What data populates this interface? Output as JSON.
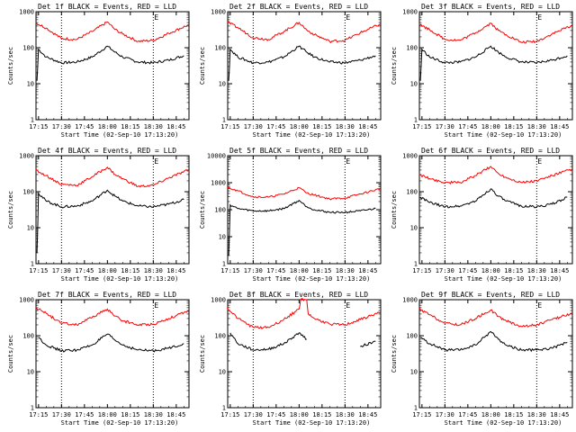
{
  "chart_data": [
    {
      "type": "line",
      "title": "Det 1f BLACK = Events, RED = LLD",
      "xlabel": "Start Time (02-Sep-10 17:13:20)",
      "ylabel": "Counts/sec",
      "yscale": "log",
      "ylim": [
        1,
        1000
      ],
      "xlim": [
        "17:13:20",
        "18:53:20"
      ],
      "x_ticks": [
        "17:15",
        "17:30",
        "17:45",
        "18:00",
        "18:15",
        "18:30",
        "18:45"
      ],
      "y_ticks": [
        "1",
        "10",
        "100",
        "1000"
      ],
      "marker": "E",
      "vlines": [
        "17:30",
        "18:30"
      ],
      "series": [
        {
          "color": "#000000",
          "x": [
            "17:14",
            "17:15",
            "17:20",
            "17:30",
            "17:40",
            "17:50",
            "18:00",
            "18:05",
            "18:10",
            "18:20",
            "18:30",
            "18:40",
            "18:50"
          ],
          "values": [
            12,
            90,
            55,
            38,
            40,
            55,
            110,
            75,
            55,
            40,
            38,
            45,
            60
          ]
        },
        {
          "color": "#ff0000",
          "x": [
            "17:13",
            "17:20",
            "17:30",
            "17:40",
            "17:50",
            "18:00",
            "18:05",
            "18:10",
            "18:20",
            "18:30",
            "18:40",
            "18:53"
          ],
          "values": [
            500,
            350,
            180,
            170,
            280,
            520,
            320,
            240,
            150,
            160,
            250,
            430
          ]
        }
      ]
    },
    {
      "type": "line",
      "title": "Det 2f BLACK = Events, RED = LLD",
      "xlabel": "Start Time (02-Sep-10 17:13:20)",
      "ylabel": "Counts/sec",
      "yscale": "log",
      "ylim": [
        1,
        1000
      ],
      "xlim": [
        "17:13:20",
        "18:53:20"
      ],
      "x_ticks": [
        "17:15",
        "17:30",
        "17:45",
        "18:00",
        "18:15",
        "18:30",
        "18:45"
      ],
      "y_ticks": [
        "1",
        "10",
        "100",
        "1000"
      ],
      "marker": "E",
      "vlines": [
        "17:30",
        "18:30"
      ],
      "series": [
        {
          "color": "#000000",
          "x": [
            "17:14",
            "17:15",
            "17:20",
            "17:30",
            "17:40",
            "17:50",
            "18:00",
            "18:05",
            "18:10",
            "18:20",
            "18:30",
            "18:40",
            "18:50"
          ],
          "values": [
            12,
            90,
            55,
            38,
            40,
            55,
            110,
            75,
            55,
            40,
            38,
            45,
            60
          ]
        },
        {
          "color": "#ff0000",
          "x": [
            "17:13",
            "17:20",
            "17:30",
            "17:40",
            "17:50",
            "18:00",
            "18:05",
            "18:10",
            "18:20",
            "18:30",
            "18:40",
            "18:53"
          ],
          "values": [
            520,
            360,
            190,
            170,
            280,
            500,
            310,
            230,
            150,
            160,
            260,
            450
          ]
        }
      ]
    },
    {
      "type": "line",
      "title": "Det 3f BLACK = Events, RED = LLD",
      "xlabel": "Start Time (02-Sep-10 17:13:20)",
      "ylabel": "Counts/sec",
      "yscale": "log",
      "ylim": [
        1,
        1000
      ],
      "xlim": [
        "17:13:20",
        "18:53:20"
      ],
      "x_ticks": [
        "17:15",
        "17:30",
        "17:45",
        "18:00",
        "18:15",
        "18:30",
        "18:45"
      ],
      "y_ticks": [
        "1",
        "10",
        "100",
        "1000"
      ],
      "marker": "E",
      "vlines": [
        "17:30",
        "18:30"
      ],
      "series": [
        {
          "color": "#000000",
          "x": [
            "17:14",
            "17:15",
            "17:20",
            "17:30",
            "17:40",
            "17:50",
            "18:00",
            "18:05",
            "18:10",
            "18:20",
            "18:30",
            "18:40",
            "18:50"
          ],
          "values": [
            12,
            90,
            55,
            38,
            40,
            55,
            110,
            75,
            55,
            40,
            38,
            45,
            60
          ]
        },
        {
          "color": "#ff0000",
          "x": [
            "17:13",
            "17:20",
            "17:30",
            "17:40",
            "17:50",
            "18:00",
            "18:05",
            "18:10",
            "18:20",
            "18:30",
            "18:40",
            "18:53"
          ],
          "values": [
            450,
            320,
            170,
            160,
            260,
            480,
            300,
            230,
            140,
            150,
            240,
            420
          ]
        }
      ]
    },
    {
      "type": "line",
      "title": "Det 4f BLACK = Events, RED = LLD",
      "xlabel": "Start Time (02-Sep-10 17:13:20)",
      "ylabel": "Counts/sec",
      "yscale": "log",
      "ylim": [
        1,
        1000
      ],
      "xlim": [
        "17:13:20",
        "18:53:20"
      ],
      "x_ticks": [
        "17:15",
        "17:30",
        "17:45",
        "18:00",
        "18:15",
        "18:30",
        "18:45"
      ],
      "y_ticks": [
        "1",
        "10",
        "100",
        "1000"
      ],
      "marker": "E",
      "vlines": [
        "17:30",
        "18:30"
      ],
      "series": [
        {
          "color": "#000000",
          "x": [
            "17:14",
            "17:15",
            "17:20",
            "17:30",
            "17:40",
            "17:50",
            "18:00",
            "18:05",
            "18:10",
            "18:20",
            "18:30",
            "18:40",
            "18:50"
          ],
          "values": [
            2,
            90,
            55,
            38,
            40,
            55,
            110,
            75,
            55,
            40,
            38,
            45,
            60
          ]
        },
        {
          "color": "#ff0000",
          "x": [
            "17:13",
            "17:20",
            "17:30",
            "17:40",
            "17:50",
            "18:00",
            "18:05",
            "18:10",
            "18:20",
            "18:30",
            "18:40",
            "18:53"
          ],
          "values": [
            400,
            280,
            160,
            150,
            260,
            480,
            300,
            230,
            140,
            150,
            240,
            400
          ]
        }
      ]
    },
    {
      "type": "line",
      "title": "Det 5f BLACK = Events, RED = LLD",
      "xlabel": "Start Time (02-Sep-10 17:13:20)",
      "ylabel": "Counts/sec",
      "yscale": "log",
      "ylim": [
        1,
        10000
      ],
      "xlim": [
        "17:13:20",
        "18:53:20"
      ],
      "x_ticks": [
        "17:15",
        "17:30",
        "17:45",
        "18:00",
        "18:15",
        "18:30",
        "18:45"
      ],
      "y_ticks": [
        "1",
        "10",
        "100",
        "1000",
        "10000"
      ],
      "marker": "E",
      "vlines": [
        "17:30",
        "18:30"
      ],
      "series": [
        {
          "color": "#000000",
          "x": [
            "17:14",
            "17:15",
            "17:20",
            "17:30",
            "17:40",
            "17:50",
            "18:00",
            "18:05",
            "18:10",
            "18:20",
            "18:30",
            "18:40",
            "18:50"
          ],
          "values": [
            2,
            150,
            110,
            90,
            90,
            110,
            220,
            130,
            100,
            80,
            80,
            90,
            110
          ]
        },
        {
          "color": "#ff0000",
          "x": [
            "17:13",
            "17:20",
            "17:30",
            "17:40",
            "17:50",
            "18:00",
            "18:05",
            "18:10",
            "18:20",
            "18:30",
            "18:40",
            "18:53"
          ],
          "values": [
            700,
            500,
            300,
            290,
            380,
            650,
            420,
            350,
            250,
            270,
            380,
            600
          ]
        }
      ]
    },
    {
      "type": "line",
      "title": "Det 6f BLACK = Events, RED = LLD",
      "xlabel": "Start Time (02-Sep-10 17:13:20)",
      "ylabel": "Counts/sec",
      "yscale": "log",
      "ylim": [
        1,
        1000
      ],
      "xlim": [
        "17:13:20",
        "18:53:20"
      ],
      "x_ticks": [
        "17:15",
        "17:30",
        "17:45",
        "18:00",
        "18:15",
        "18:30",
        "18:45"
      ],
      "y_ticks": [
        "1",
        "10",
        "100",
        "1000"
      ],
      "marker": "E",
      "vlines": [
        "17:30",
        "18:30"
      ],
      "series": [
        {
          "color": "#000000",
          "x": [
            "17:14",
            "17:20",
            "17:30",
            "17:40",
            "17:50",
            "18:00",
            "18:05",
            "18:10",
            "18:20",
            "18:30",
            "18:40",
            "18:50"
          ],
          "values": [
            70,
            50,
            38,
            40,
            55,
            120,
            75,
            55,
            40,
            38,
            45,
            70
          ]
        },
        {
          "color": "#ff0000",
          "x": [
            "17:13",
            "17:20",
            "17:30",
            "17:40",
            "17:50",
            "18:00",
            "18:05",
            "18:10",
            "18:20",
            "18:30",
            "18:40",
            "18:53"
          ],
          "values": [
            300,
            230,
            180,
            180,
            280,
            500,
            320,
            250,
            180,
            200,
            280,
            420
          ]
        }
      ]
    },
    {
      "type": "line",
      "title": "Det 7f BLACK = Events, RED = LLD",
      "xlabel": "Start Time (02-Sep-10 17:13:20)",
      "ylabel": "Counts/sec",
      "yscale": "log",
      "ylim": [
        1,
        1000
      ],
      "xlim": [
        "17:13:20",
        "18:53:20"
      ],
      "x_ticks": [
        "17:15",
        "17:30",
        "17:45",
        "18:00",
        "18:15",
        "18:30",
        "18:45"
      ],
      "y_ticks": [
        "1",
        "10",
        "100",
        "1000"
      ],
      "marker": "E",
      "vlines": [
        "17:30",
        "18:30"
      ],
      "series": [
        {
          "color": "#000000",
          "x": [
            "17:15",
            "17:20",
            "17:30",
            "17:40",
            "17:50",
            "18:00",
            "18:05",
            "18:10",
            "18:20",
            "18:30",
            "18:40",
            "18:50"
          ],
          "values": [
            90,
            55,
            38,
            40,
            55,
            110,
            75,
            55,
            40,
            38,
            45,
            60
          ]
        },
        {
          "color": "#ff0000",
          "x": [
            "17:13",
            "17:20",
            "17:30",
            "17:40",
            "17:50",
            "18:00",
            "18:05",
            "18:10",
            "18:20",
            "18:30",
            "18:40",
            "18:53"
          ],
          "values": [
            600,
            420,
            220,
            200,
            320,
            550,
            350,
            260,
            200,
            210,
            300,
            480
          ]
        }
      ]
    },
    {
      "type": "line",
      "title": "Det 8f BLACK = Events, RED = LLD",
      "xlabel": "Start Time (02-Sep-10 17:13:20)",
      "ylabel": "Counts/sec",
      "yscale": "log",
      "ylim": [
        1,
        1000
      ],
      "xlim": [
        "17:13:20",
        "18:53:20"
      ],
      "x_ticks": [
        "17:15",
        "17:30",
        "17:45",
        "18:00",
        "18:15",
        "18:30",
        "18:45"
      ],
      "y_ticks": [
        "1",
        "10",
        "100",
        "1000"
      ],
      "marker": "E",
      "vlines": [
        "17:30",
        "18:30"
      ],
      "series": [
        {
          "color": "#000000",
          "x": [
            "17:15",
            "17:20",
            "17:30",
            "17:40",
            "17:50",
            "18:00",
            "18:05",
            "18:10",
            "18:20",
            "18:30",
            "18:40",
            "18:50"
          ],
          "values": [
            120,
            60,
            40,
            42,
            60,
            120,
            80,
            null,
            null,
            null,
            50,
            70
          ]
        },
        {
          "color": "#ff0000",
          "x": [
            "17:13",
            "17:20",
            "17:30",
            "17:40",
            "17:50",
            "18:00",
            "18:01",
            "18:05",
            "18:06",
            "18:10",
            "18:20",
            "18:30",
            "18:40",
            "18:53"
          ],
          "values": [
            600,
            300,
            170,
            170,
            280,
            550,
            1000,
            1000,
            400,
            300,
            210,
            200,
            280,
            450
          ]
        }
      ]
    },
    {
      "type": "line",
      "title": "Det 9f BLACK = Events, RED = LLD",
      "xlabel": "Start Time (02-Sep-10 17:13:20)",
      "ylabel": "Counts/sec",
      "yscale": "log",
      "ylim": [
        1,
        1000
      ],
      "xlim": [
        "17:13:20",
        "18:53:20"
      ],
      "x_ticks": [
        "17:15",
        "17:30",
        "17:45",
        "18:00",
        "18:15",
        "18:30",
        "18:45"
      ],
      "y_ticks": [
        "1",
        "10",
        "100",
        "1000"
      ],
      "marker": "E",
      "vlines": [
        "17:30",
        "18:30"
      ],
      "series": [
        {
          "color": "#000000",
          "x": [
            "17:14",
            "17:20",
            "17:30",
            "17:40",
            "17:50",
            "18:00",
            "18:05",
            "18:10",
            "18:20",
            "18:30",
            "18:40",
            "18:50"
          ],
          "values": [
            90,
            60,
            40,
            40,
            55,
            130,
            80,
            55,
            40,
            40,
            45,
            65
          ]
        },
        {
          "color": "#ff0000",
          "x": [
            "17:13",
            "17:20",
            "17:30",
            "17:40",
            "17:50",
            "18:00",
            "18:05",
            "18:10",
            "18:20",
            "18:30",
            "18:40",
            "18:53"
          ],
          "values": [
            550,
            380,
            220,
            200,
            300,
            520,
            340,
            260,
            180,
            200,
            280,
            420
          ]
        }
      ]
    }
  ]
}
